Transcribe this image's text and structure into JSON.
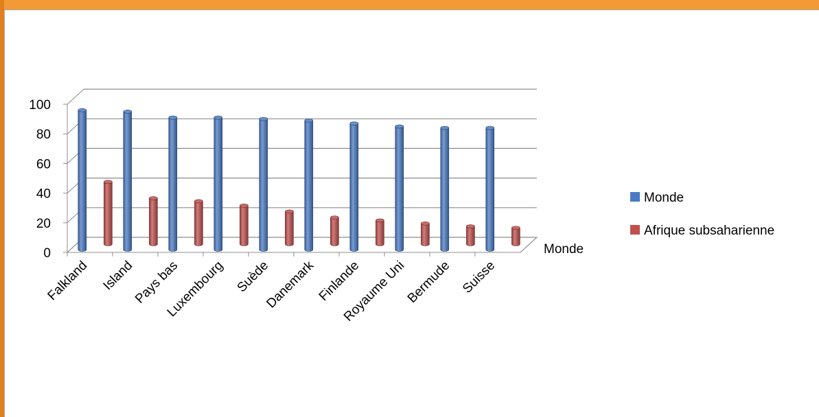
{
  "chart_data": {
    "type": "bar",
    "categories": [
      "Falkland",
      "Island",
      "Pays bas",
      "Luxembourg",
      "Suède",
      "Danemark",
      "Finlande",
      "Royaume Uni",
      "Bermude",
      "Suisse"
    ],
    "series": [
      {
        "name": "Monde",
        "color": "#4a7bc4",
        "values": [
          96,
          95,
          91,
          91,
          90,
          89,
          87,
          85,
          84,
          84
        ]
      },
      {
        "name": "Afrique subsaharienne",
        "color": "#c0504d",
        "values": [
          42,
          31,
          29,
          26,
          22,
          18,
          16,
          14,
          12,
          11
        ]
      }
    ],
    "depth_axis_label": "Monde",
    "yticks": [
      "0",
      "20",
      "40",
      "60",
      "80",
      "100"
    ],
    "ylim": [
      0,
      100
    ],
    "grid": true,
    "legend_position": "right",
    "style": "3d-cylinder"
  }
}
